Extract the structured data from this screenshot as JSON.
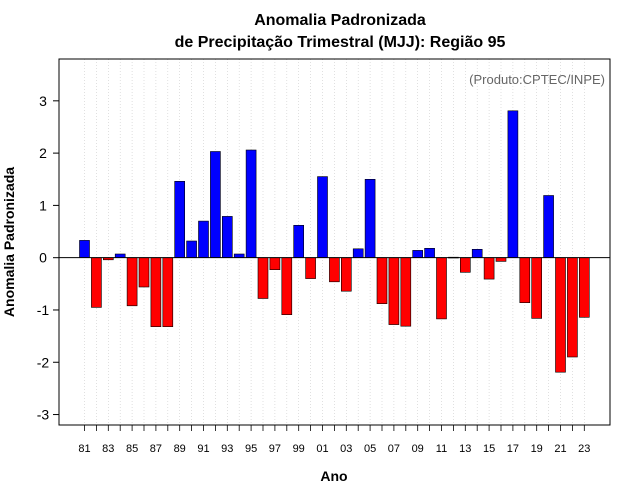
{
  "chart_data": {
    "type": "bar",
    "title_line1": "Anomalia Padronizada",
    "title_line2": "de Precipitação Trimestral (MJJ): Região 95",
    "xlabel": "Ano",
    "ylabel": "Anomalia Padronizada",
    "credit": "(Produto:CPTEC/INPE)",
    "ylim": [
      -3.2,
      3.8
    ],
    "yticks": [
      "-3",
      "-2",
      "-1",
      "0",
      "1",
      "2",
      "3"
    ],
    "categories": [
      "81",
      "82",
      "83",
      "84",
      "85",
      "86",
      "87",
      "88",
      "89",
      "90",
      "91",
      "92",
      "93",
      "94",
      "95",
      "96",
      "97",
      "98",
      "99",
      "00",
      "01",
      "02",
      "03",
      "04",
      "05",
      "06",
      "07",
      "08",
      "09",
      "10",
      "11",
      "12",
      "13",
      "14",
      "15",
      "16",
      "17",
      "18",
      "19",
      "20",
      "21",
      "22",
      "23"
    ],
    "xtick_labels": [
      "81",
      "83",
      "85",
      "87",
      "89",
      "91",
      "93",
      "95",
      "97",
      "99",
      "01",
      "03",
      "05",
      "07",
      "09",
      "11",
      "13",
      "15",
      "17",
      "19",
      "21",
      "23"
    ],
    "values": [
      0.33,
      -0.95,
      -0.04,
      0.07,
      -0.92,
      -0.56,
      -1.32,
      -1.32,
      1.46,
      0.32,
      0.7,
      2.03,
      0.79,
      0.07,
      2.06,
      -0.78,
      -0.23,
      -1.09,
      0.62,
      -0.4,
      1.55,
      -0.46,
      -0.64,
      0.17,
      1.5,
      -0.88,
      -1.28,
      -1.31,
      0.14,
      0.18,
      -1.17,
      0.01,
      -0.28,
      0.16,
      -0.41,
      -0.07,
      2.81,
      -0.86,
      -1.16,
      1.19,
      -2.19,
      -1.9,
      -1.14
    ],
    "positive_color": "#0000ff",
    "negative_color": "#ff0000"
  }
}
